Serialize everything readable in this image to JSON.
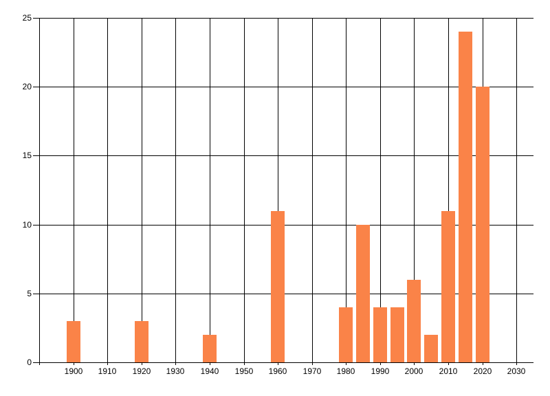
{
  "chart_data": {
    "type": "bar",
    "title": "",
    "xlabel": "",
    "ylabel": "",
    "x": [
      1900,
      1920,
      1940,
      1960,
      1980,
      1985,
      1990,
      1995,
      2000,
      2005,
      2010,
      2015,
      2020
    ],
    "values": [
      3,
      3,
      2,
      11,
      4,
      10,
      4,
      4,
      6,
      2,
      11,
      24,
      20
    ],
    "x_ticks": [
      1900,
      1910,
      1920,
      1930,
      1940,
      1950,
      1960,
      1970,
      1980,
      1990,
      2000,
      2010,
      2020,
      2030
    ],
    "y_ticks": [
      0,
      5,
      10,
      15,
      20,
      25
    ],
    "xlim": [
      1890,
      2035
    ],
    "ylim": [
      0,
      25
    ],
    "grid": true,
    "legend": null,
    "colors": {
      "bar": "#FA8348",
      "grid": "#000000",
      "text": "#000000",
      "background": "#ffffff"
    }
  }
}
